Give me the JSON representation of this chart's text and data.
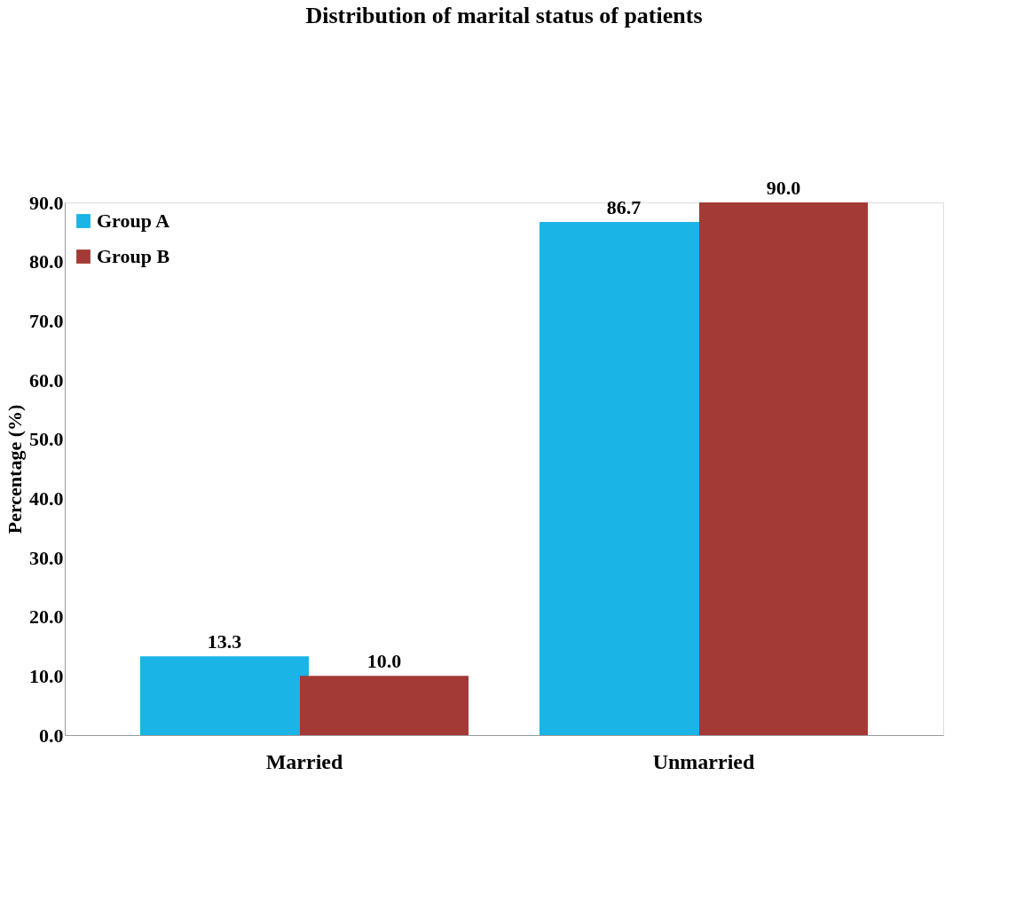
{
  "chart_data": {
    "type": "bar",
    "title": "Distribution of marital status of patients",
    "ylabel": "Percentage (%)",
    "categories": [
      "Married",
      "Unmarried"
    ],
    "series": [
      {
        "name": "Group A",
        "color": "#1ab4e6",
        "values": [
          13.3,
          86.7
        ],
        "value_labels": [
          "13.3",
          "86.7"
        ]
      },
      {
        "name": "Group B",
        "color": "#a33a36",
        "values": [
          10.0,
          90.0
        ],
        "value_labels": [
          "10.0",
          "90.0"
        ]
      }
    ],
    "ylim": [
      0,
      90
    ],
    "yticks": [
      {
        "value": 0,
        "label": "0.0"
      },
      {
        "value": 10,
        "label": "10.0"
      },
      {
        "value": 20,
        "label": "20.0"
      },
      {
        "value": 30,
        "label": "30.0"
      },
      {
        "value": 40,
        "label": "40.0"
      },
      {
        "value": 50,
        "label": "50.0"
      },
      {
        "value": 60,
        "label": "60.0"
      },
      {
        "value": 70,
        "label": "70.0"
      },
      {
        "value": 80,
        "label": "80.0"
      },
      {
        "value": 90,
        "label": "90.0"
      }
    ],
    "grid": false,
    "legend": "top left"
  }
}
